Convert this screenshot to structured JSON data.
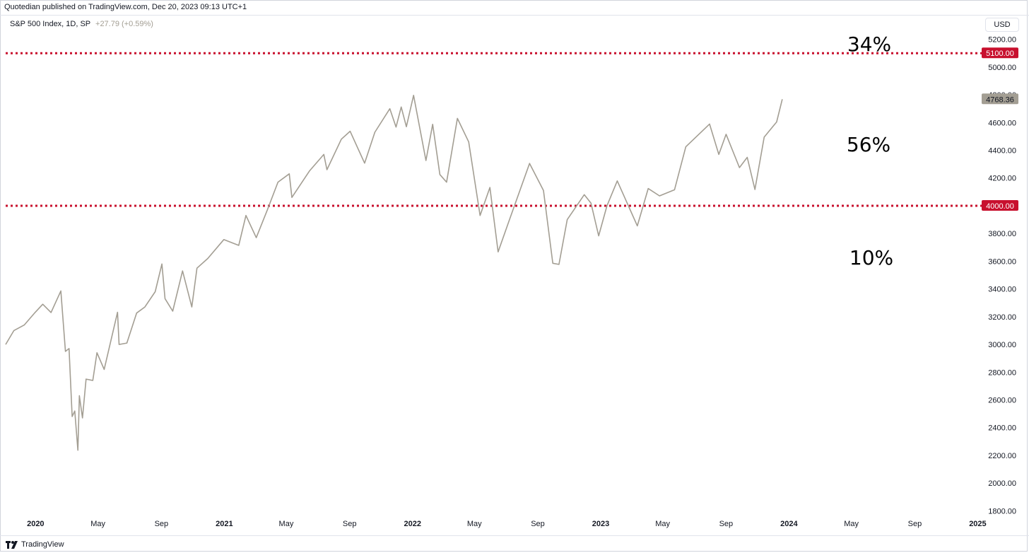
{
  "header": {
    "published_by": "Quotedian published on TradingView.com, Dec 20, 2023 09:13 UTC+1"
  },
  "legend": {
    "symbol": "S&P 500 Index, 1D, SP",
    "change": "+27.79 (+0.59%)"
  },
  "currency": "USD",
  "footer": {
    "brand": "TradingView"
  },
  "annotations": {
    "top_pct": "34%",
    "mid_pct": "56%",
    "low_pct": "10%"
  },
  "colors": {
    "price_line": "#a39e93",
    "level_line": "#c8102e",
    "last_price_tag": "#a39e93"
  },
  "chart_data": {
    "type": "line",
    "title": "",
    "xlabel": "",
    "ylabel": "",
    "ylim": [
      1700,
      5300
    ],
    "xlim": [
      "2019-11-04",
      "2025-01-10"
    ],
    "y_ticks": [
      "1800.00",
      "2000.00",
      "2200.00",
      "2400.00",
      "2600.00",
      "2800.00",
      "3000.00",
      "3200.00",
      "3400.00",
      "3600.00",
      "3800.00",
      "4000.00",
      "4200.00",
      "4400.00",
      "4600.00",
      "4800.00",
      "5000.00",
      "5200.00"
    ],
    "x_ticks": [
      {
        "label": "2020",
        "date": "2020-01-01",
        "year": true
      },
      {
        "label": "May",
        "date": "2020-05-01"
      },
      {
        "label": "Sep",
        "date": "2020-09-01"
      },
      {
        "label": "2021",
        "date": "2021-01-01",
        "year": true
      },
      {
        "label": "May",
        "date": "2021-05-01"
      },
      {
        "label": "Sep",
        "date": "2021-09-01"
      },
      {
        "label": "2022",
        "date": "2022-01-01",
        "year": true
      },
      {
        "label": "May",
        "date": "2022-05-01"
      },
      {
        "label": "Sep",
        "date": "2022-09-01"
      },
      {
        "label": "2023",
        "date": "2023-01-01",
        "year": true
      },
      {
        "label": "May",
        "date": "2023-05-01"
      },
      {
        "label": "Sep",
        "date": "2023-09-01"
      },
      {
        "label": "2024",
        "date": "2024-01-01",
        "year": true
      },
      {
        "label": "May",
        "date": "2024-05-01"
      },
      {
        "label": "Sep",
        "date": "2024-09-01"
      },
      {
        "label": "2025",
        "date": "2025-01-01",
        "year": true
      }
    ],
    "horizontal_levels": [
      {
        "value": 5100,
        "label": "5100.00"
      },
      {
        "value": 4000,
        "label": "4000.00"
      }
    ],
    "last_price": {
      "value": 4768.36,
      "label": "4768.36"
    },
    "series": [
      {
        "points": [
          [
            "2019-11-04",
            3000
          ],
          [
            "2019-11-20",
            3100
          ],
          [
            "2019-12-10",
            3140
          ],
          [
            "2019-12-31",
            3230
          ],
          [
            "2020-01-15",
            3290
          ],
          [
            "2020-01-31",
            3230
          ],
          [
            "2020-02-19",
            3386
          ],
          [
            "2020-02-28",
            2950
          ],
          [
            "2020-03-06",
            2970
          ],
          [
            "2020-03-12",
            2480
          ],
          [
            "2020-03-17",
            2520
          ],
          [
            "2020-03-23",
            2237
          ],
          [
            "2020-03-26",
            2630
          ],
          [
            "2020-04-01",
            2470
          ],
          [
            "2020-04-08",
            2750
          ],
          [
            "2020-04-21",
            2740
          ],
          [
            "2020-04-29",
            2940
          ],
          [
            "2020-05-13",
            2820
          ],
          [
            "2020-06-08",
            3232
          ],
          [
            "2020-06-11",
            3000
          ],
          [
            "2020-06-26",
            3010
          ],
          [
            "2020-07-15",
            3226
          ],
          [
            "2020-07-31",
            3270
          ],
          [
            "2020-08-20",
            3380
          ],
          [
            "2020-09-02",
            3580
          ],
          [
            "2020-09-08",
            3330
          ],
          [
            "2020-09-23",
            3240
          ],
          [
            "2020-10-12",
            3530
          ],
          [
            "2020-10-30",
            3270
          ],
          [
            "2020-11-09",
            3550
          ],
          [
            "2020-11-30",
            3620
          ],
          [
            "2020-12-31",
            3756
          ],
          [
            "2021-01-29",
            3714
          ],
          [
            "2021-02-12",
            3930
          ],
          [
            "2021-03-04",
            3770
          ],
          [
            "2021-03-26",
            3975
          ],
          [
            "2021-04-15",
            4170
          ],
          [
            "2021-05-07",
            4230
          ],
          [
            "2021-05-12",
            4060
          ],
          [
            "2021-06-15",
            4250
          ],
          [
            "2021-07-13",
            4370
          ],
          [
            "2021-07-19",
            4260
          ],
          [
            "2021-08-16",
            4480
          ],
          [
            "2021-09-02",
            4537
          ],
          [
            "2021-09-30",
            4307
          ],
          [
            "2021-10-20",
            4530
          ],
          [
            "2021-11-18",
            4700
          ],
          [
            "2021-11-30",
            4567
          ],
          [
            "2021-12-10",
            4712
          ],
          [
            "2021-12-20",
            4570
          ],
          [
            "2022-01-03",
            4796
          ],
          [
            "2022-01-27",
            4326
          ],
          [
            "2022-02-09",
            4587
          ],
          [
            "2022-02-23",
            4225
          ],
          [
            "2022-03-08",
            4170
          ],
          [
            "2022-03-29",
            4630
          ],
          [
            "2022-04-20",
            4460
          ],
          [
            "2022-05-12",
            3930
          ],
          [
            "2022-05-31",
            4132
          ],
          [
            "2022-06-16",
            3667
          ],
          [
            "2022-07-08",
            3900
          ],
          [
            "2022-08-16",
            4305
          ],
          [
            "2022-09-12",
            4110
          ],
          [
            "2022-09-30",
            3585
          ],
          [
            "2022-10-12",
            3577
          ],
          [
            "2022-10-28",
            3900
          ],
          [
            "2022-11-30",
            4080
          ],
          [
            "2022-12-13",
            4019
          ],
          [
            "2022-12-28",
            3783
          ],
          [
            "2023-01-13",
            3999
          ],
          [
            "2023-02-02",
            4179
          ],
          [
            "2023-03-13",
            3855
          ],
          [
            "2023-04-03",
            4124
          ],
          [
            "2023-04-25",
            4071
          ],
          [
            "2023-05-24",
            4115
          ],
          [
            "2023-06-15",
            4425
          ],
          [
            "2023-07-31",
            4589
          ],
          [
            "2023-08-18",
            4370
          ],
          [
            "2023-09-01",
            4515
          ],
          [
            "2023-09-27",
            4275
          ],
          [
            "2023-10-12",
            4349
          ],
          [
            "2023-10-27",
            4117
          ],
          [
            "2023-11-14",
            4495
          ],
          [
            "2023-11-30",
            4568
          ],
          [
            "2023-12-08",
            4604
          ],
          [
            "2023-12-19",
            4768
          ]
        ]
      }
    ]
  }
}
